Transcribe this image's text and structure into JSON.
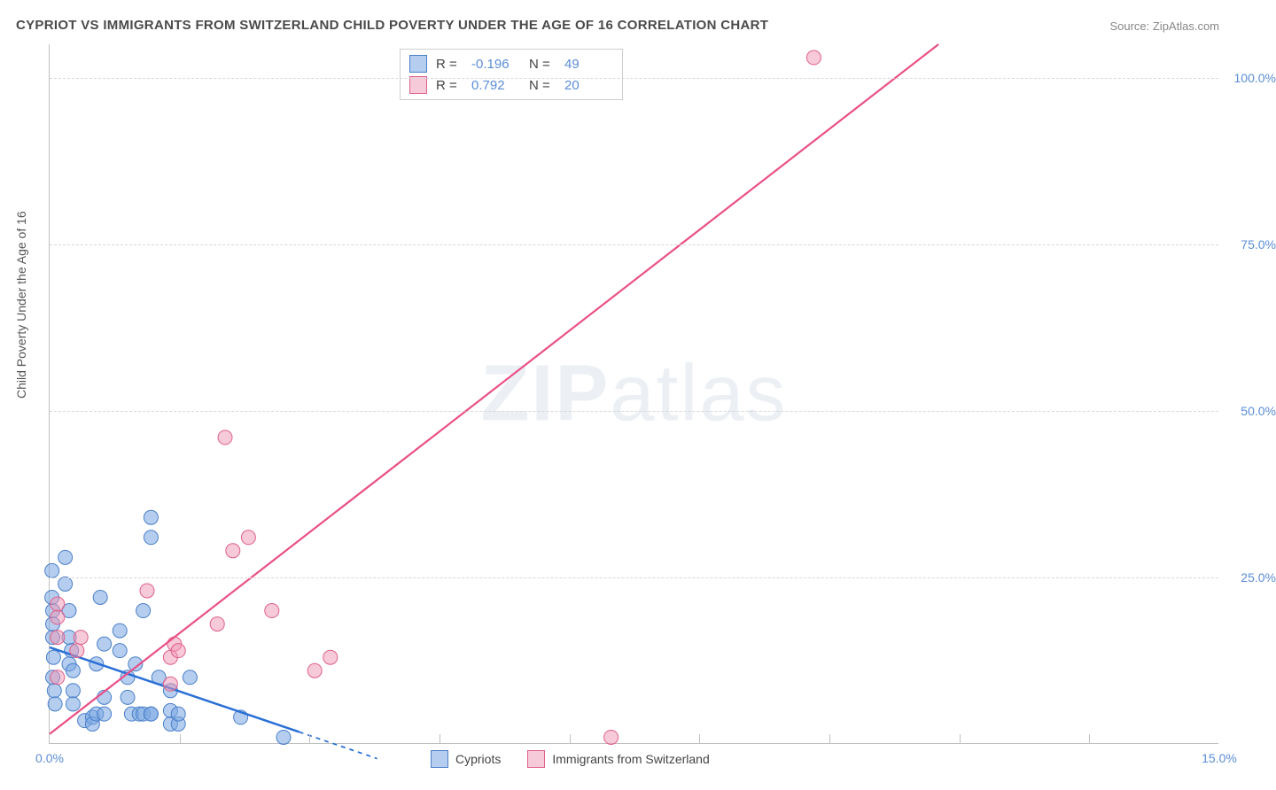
{
  "title": "CYPRIOT VS IMMIGRANTS FROM SWITZERLAND CHILD POVERTY UNDER THE AGE OF 16 CORRELATION CHART",
  "source": "Source: ZipAtlas.com",
  "ylabel": "Child Poverty Under the Age of 16",
  "watermark_a": "ZIP",
  "watermark_b": "atlas",
  "chart": {
    "type": "scatter",
    "background_color": "#ffffff",
    "grid_color": "#d8d8d8",
    "axis_color": "#c0c0c0",
    "tick_label_color": "#5b8dd6",
    "xlim": [
      0,
      15
    ],
    "ylim": [
      0,
      105
    ],
    "xticks": [
      0,
      15
    ],
    "xtick_labels": [
      "0.0%",
      "15.0%"
    ],
    "xtick_minor": [
      1.67,
      3.33,
      5.0,
      6.67,
      8.33,
      10.0,
      11.67,
      13.33
    ],
    "yticks": [
      25,
      50,
      75,
      100
    ],
    "ytick_labels": [
      "25.0%",
      "50.0%",
      "75.0%",
      "100.0%"
    ],
    "series": [
      {
        "name": "Cypriots",
        "R_label": "R =",
        "R_value": "-0.196",
        "N_label": "N =",
        "N_value": "49",
        "marker_fill": "rgba(120,165,225,0.55)",
        "marker_stroke": "#4a7fc9",
        "marker_radius": 8,
        "line_color": "#2a6fd6",
        "line_width": 2.5,
        "trend_solid": {
          "x1": 0,
          "y1": 14.5,
          "x2": 3.2,
          "y2": 1.8
        },
        "trend_dash": {
          "x1": 3.2,
          "y1": 1.8,
          "x2": 4.2,
          "y2": -2.2
        },
        "points": [
          [
            0.05,
            13
          ],
          [
            0.04,
            10
          ],
          [
            0.06,
            8
          ],
          [
            0.07,
            6
          ],
          [
            0.04,
            16
          ],
          [
            0.04,
            18
          ],
          [
            0.04,
            20
          ],
          [
            0.03,
            22
          ],
          [
            0.03,
            26
          ],
          [
            0.2,
            28
          ],
          [
            0.2,
            24
          ],
          [
            0.25,
            20
          ],
          [
            0.25,
            16
          ],
          [
            0.28,
            14
          ],
          [
            0.25,
            12
          ],
          [
            0.3,
            11
          ],
          [
            0.3,
            8
          ],
          [
            0.3,
            6
          ],
          [
            0.45,
            3.5
          ],
          [
            0.55,
            4
          ],
          [
            0.55,
            3
          ],
          [
            0.6,
            4.5
          ],
          [
            0.7,
            4.5
          ],
          [
            0.7,
            7
          ],
          [
            0.6,
            12
          ],
          [
            0.7,
            15
          ],
          [
            0.65,
            22
          ],
          [
            0.9,
            17
          ],
          [
            0.9,
            14
          ],
          [
            1.0,
            10
          ],
          [
            1.0,
            7
          ],
          [
            1.05,
            4.5
          ],
          [
            1.15,
            4.5
          ],
          [
            1.2,
            4.5
          ],
          [
            1.3,
            4.5
          ],
          [
            1.1,
            12
          ],
          [
            1.2,
            20
          ],
          [
            1.3,
            34
          ],
          [
            1.3,
            31
          ],
          [
            1.4,
            10
          ],
          [
            1.3,
            4.5
          ],
          [
            1.55,
            3
          ],
          [
            1.55,
            5
          ],
          [
            1.55,
            8
          ],
          [
            1.65,
            3
          ],
          [
            1.65,
            4.5
          ],
          [
            1.8,
            10
          ],
          [
            2.45,
            4
          ],
          [
            3.0,
            1
          ]
        ]
      },
      {
        "name": "Immigrants from Switzerland",
        "R_label": "R =",
        "R_value": "0.792",
        "N_label": "N =",
        "N_value": "20",
        "marker_fill": "rgba(240,150,180,0.5)",
        "marker_stroke": "#e05f8c",
        "marker_radius": 8,
        "line_color": "#e94f86",
        "line_width": 2.2,
        "trend_solid": {
          "x1": 0,
          "y1": 1.5,
          "x2": 11.4,
          "y2": 105
        },
        "points": [
          [
            0.1,
            10
          ],
          [
            0.1,
            16
          ],
          [
            0.1,
            19
          ],
          [
            0.1,
            21
          ],
          [
            0.35,
            14
          ],
          [
            0.4,
            16
          ],
          [
            1.25,
            23
          ],
          [
            1.55,
            9
          ],
          [
            1.55,
            13
          ],
          [
            1.6,
            15
          ],
          [
            1.65,
            14
          ],
          [
            2.15,
            18
          ],
          [
            2.25,
            46
          ],
          [
            2.35,
            29
          ],
          [
            2.55,
            31
          ],
          [
            2.85,
            20
          ],
          [
            3.4,
            11
          ],
          [
            3.6,
            13
          ],
          [
            7.2,
            1
          ],
          [
            9.8,
            103
          ]
        ]
      }
    ]
  }
}
